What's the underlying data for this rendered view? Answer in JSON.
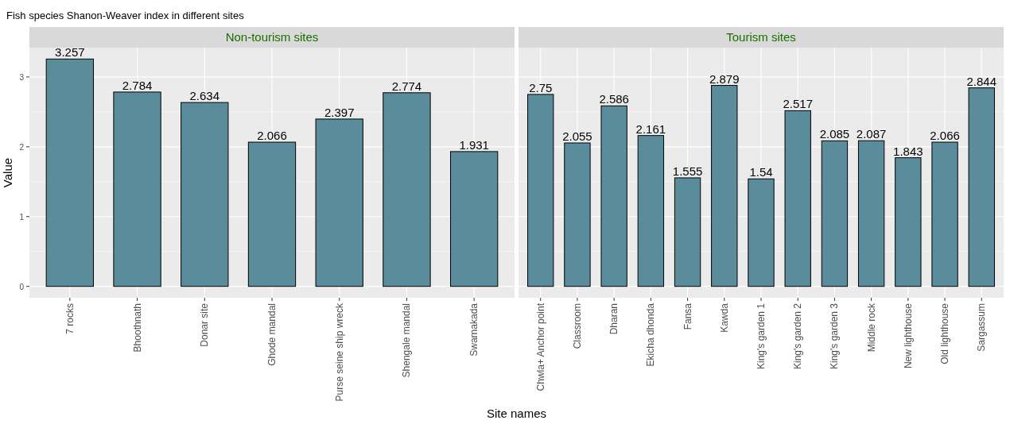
{
  "chart_data": [
    {
      "type": "bar",
      "title": "Fish species Shanon-Weaver index in different sites",
      "subtitle": "Non-tourism sites",
      "xlabel": "Site names",
      "ylabel": "Value",
      "categories": [
        "7 rocks",
        "Bhoothnath",
        "Donar site",
        "Ghode mandal",
        "Purse seine ship wreck",
        "Shengale mandal",
        "Swarnakada"
      ],
      "values": [
        3.257,
        2.784,
        2.634,
        2.066,
        2.397,
        2.774,
        1.931
      ],
      "color": "#5b8c9c",
      "ylim": [
        -0.163,
        3.42
      ],
      "yticks": [
        0,
        1,
        2,
        3
      ],
      "grid": true,
      "data_labels": true
    },
    {
      "type": "bar",
      "subtitle": "Tourism sites",
      "categories": [
        "Chwla+ Anchor point",
        "Classroom",
        "Dharan",
        "Ekicha dhonda",
        "Fansa",
        "Kawda",
        "King's garden 1",
        "King's garden 2",
        "King's garden 3",
        "Middle rock",
        "New lighthouse",
        "Old lighthouse",
        "Sargassum"
      ],
      "values": [
        2.75,
        2.055,
        2.586,
        2.161,
        1.555,
        2.879,
        1.54,
        2.517,
        2.085,
        2.087,
        1.843,
        2.066,
        2.844
      ],
      "color": "#5b8c9c",
      "ylim": [
        -0.163,
        3.42
      ],
      "yticks": [
        0,
        1,
        2,
        3
      ],
      "grid": true,
      "data_labels": true,
      "tick_labels": "x"
    }
  ]
}
